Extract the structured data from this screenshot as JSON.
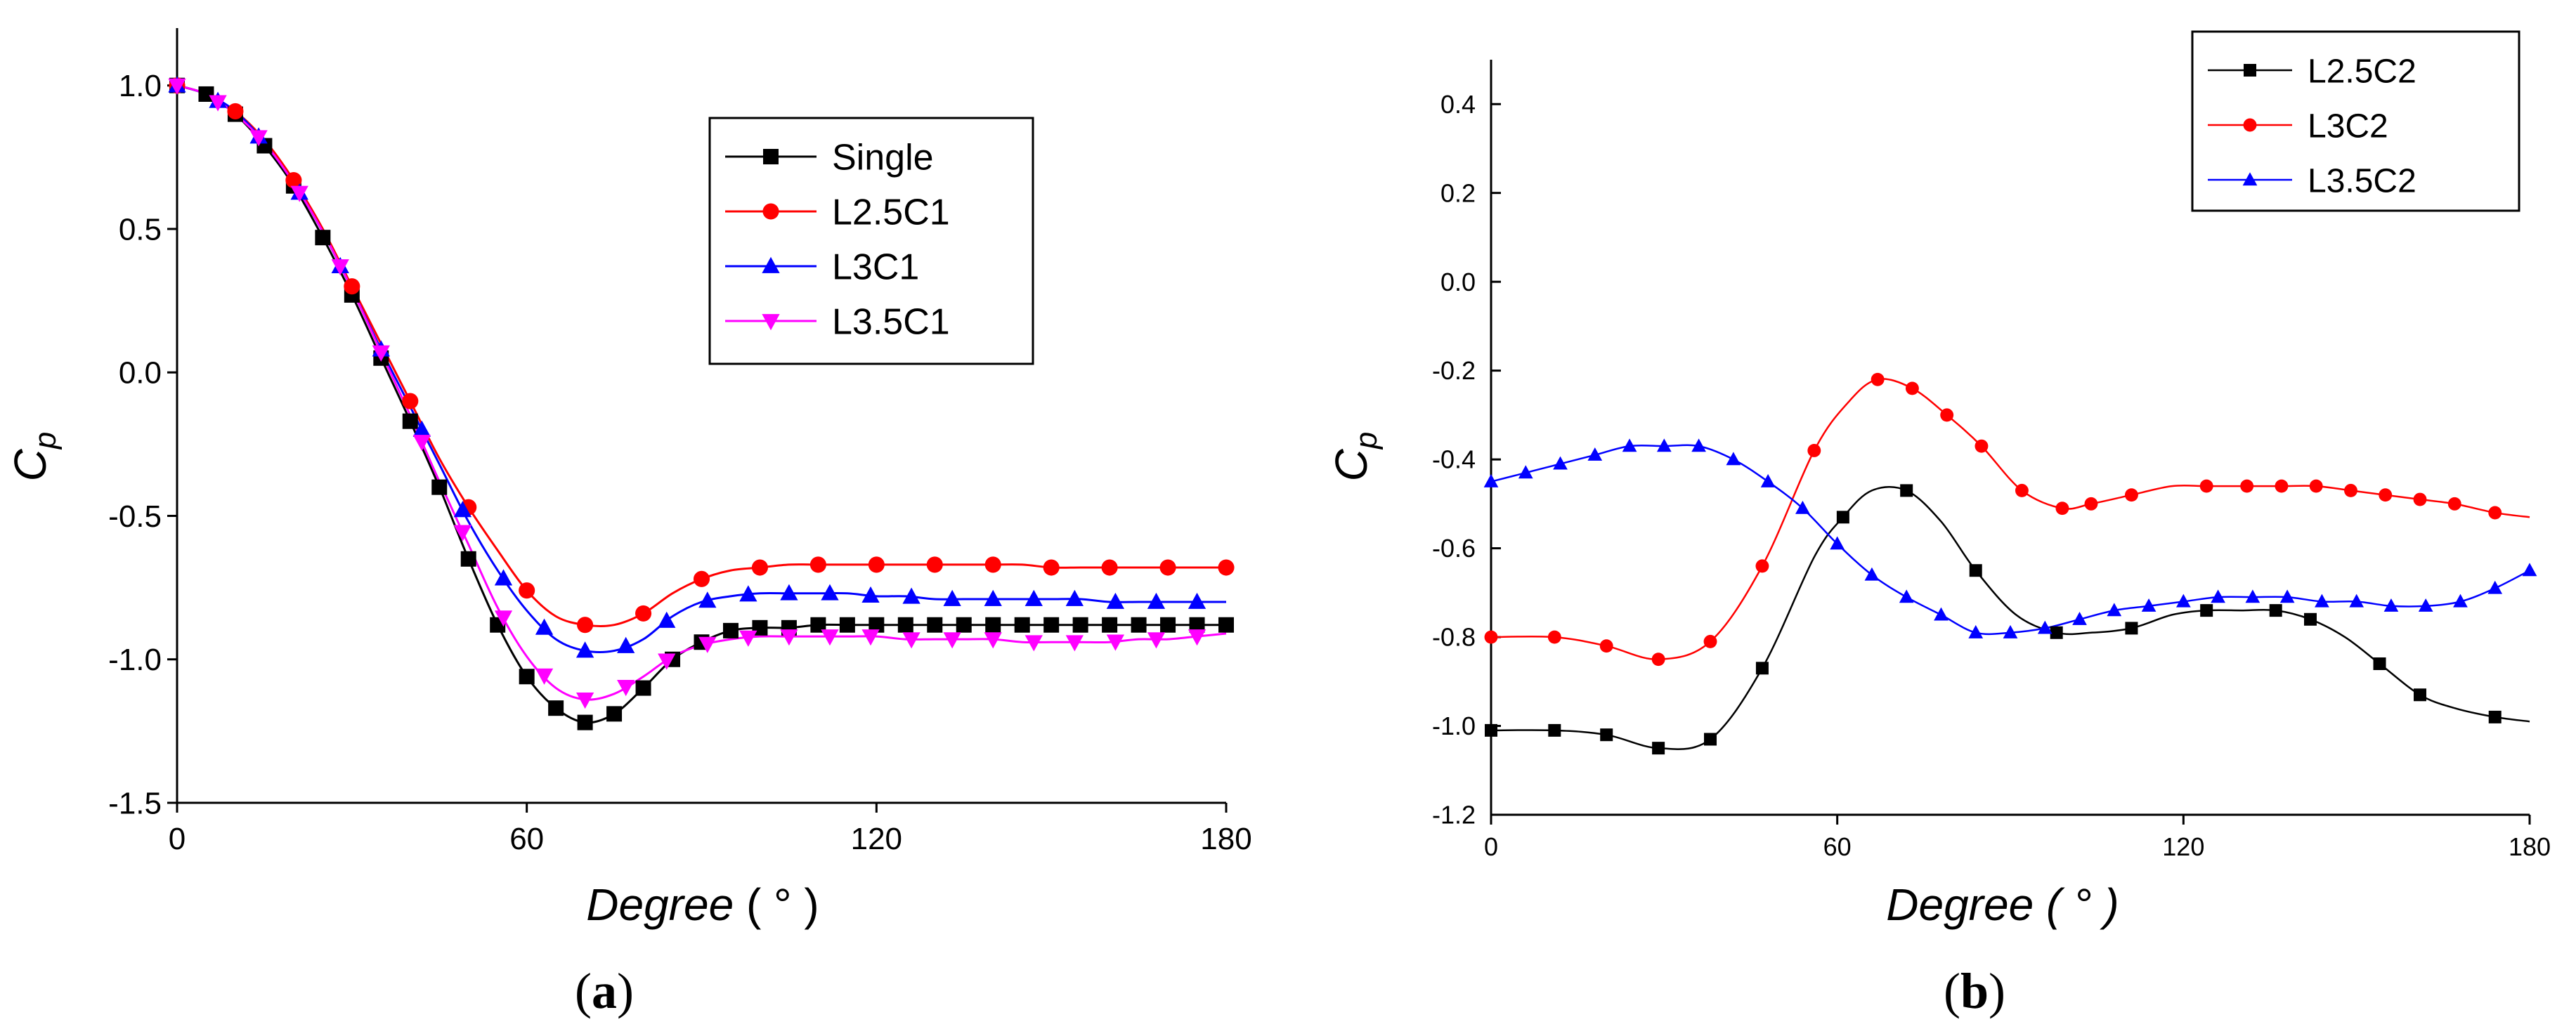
{
  "chart_data": [
    {
      "type": "line",
      "panel_label": "(a)",
      "panel_label_parts": [
        "(",
        "a",
        ")"
      ],
      "xlabel_parts": [
        "Degree",
        "( ° )"
      ],
      "ylabel": "C",
      "ylabel_subscript": "p",
      "xlim": [
        0,
        180
      ],
      "ylim": [
        -1.5,
        1.2
      ],
      "xticks": [
        0,
        60,
        120,
        180
      ],
      "yticks": [
        1.0,
        0.5,
        0.0,
        -0.5,
        -1.0,
        -1.5
      ],
      "ytick_labels": [
        "1.0",
        "0.5",
        "0.0",
        "-0.5",
        "-1.0",
        "-1.5"
      ],
      "legend_position": "top-center",
      "series": [
        {
          "name": "Single",
          "color": "#000000",
          "marker": "square",
          "x": [
            0,
            5,
            10,
            15,
            20,
            25,
            30,
            35,
            40,
            45,
            50,
            55,
            60,
            65,
            70,
            75,
            80,
            85,
            90,
            95,
            100,
            105,
            110,
            115,
            120,
            125,
            130,
            135,
            140,
            145,
            150,
            155,
            160,
            165,
            170,
            175,
            180
          ],
          "y": [
            1.0,
            0.97,
            0.9,
            0.79,
            0.65,
            0.47,
            0.27,
            0.05,
            -0.17,
            -0.4,
            -0.65,
            -0.88,
            -1.06,
            -1.17,
            -1.22,
            -1.19,
            -1.1,
            -1.0,
            -0.94,
            -0.9,
            -0.89,
            -0.89,
            -0.88,
            -0.88,
            -0.88,
            -0.88,
            -0.88,
            -0.88,
            -0.88,
            -0.88,
            -0.88,
            -0.88,
            -0.88,
            -0.88,
            -0.88,
            -0.88,
            -0.88
          ],
          "marker_x": [
            0,
            5,
            10,
            15,
            20,
            25,
            30,
            35,
            40,
            45,
            50,
            55,
            60,
            65,
            70,
            75,
            80,
            85,
            90,
            95,
            100,
            105,
            110,
            115,
            120,
            125,
            130,
            135,
            140,
            145,
            150,
            155,
            160,
            165,
            170,
            175,
            180
          ]
        },
        {
          "name": "L2.5C1",
          "color": "#ff0000",
          "marker": "circle",
          "x": [
            0,
            5,
            10,
            15,
            20,
            25,
            30,
            35,
            40,
            45,
            50,
            55,
            60,
            65,
            70,
            75,
            80,
            85,
            90,
            95,
            100,
            105,
            110,
            115,
            120,
            125,
            130,
            135,
            140,
            145,
            150,
            155,
            160,
            165,
            170,
            175,
            180
          ],
          "y": [
            1.0,
            0.97,
            0.91,
            0.81,
            0.67,
            0.5,
            0.3,
            0.1,
            -0.1,
            -0.3,
            -0.47,
            -0.62,
            -0.76,
            -0.85,
            -0.88,
            -0.88,
            -0.84,
            -0.77,
            -0.72,
            -0.69,
            -0.68,
            -0.67,
            -0.67,
            -0.67,
            -0.67,
            -0.67,
            -0.67,
            -0.67,
            -0.67,
            -0.67,
            -0.68,
            -0.68,
            -0.68,
            -0.68,
            -0.68,
            -0.68,
            -0.68
          ],
          "marker_x": [
            0,
            10,
            20,
            30,
            40,
            50,
            60,
            70,
            80,
            90,
            100,
            110,
            120,
            130,
            140,
            150,
            160,
            170,
            180
          ]
        },
        {
          "name": "L3C1",
          "color": "#0000ff",
          "marker": "triangle-up",
          "x": [
            0,
            5,
            10,
            15,
            20,
            25,
            30,
            35,
            40,
            45,
            50,
            55,
            60,
            65,
            70,
            75,
            80,
            85,
            90,
            95,
            100,
            105,
            110,
            115,
            120,
            125,
            130,
            135,
            140,
            145,
            150,
            155,
            160,
            165,
            170,
            175,
            180
          ],
          "y": [
            1.0,
            0.97,
            0.91,
            0.8,
            0.66,
            0.49,
            0.29,
            0.08,
            -0.12,
            -0.32,
            -0.52,
            -0.69,
            -0.83,
            -0.93,
            -0.97,
            -0.97,
            -0.93,
            -0.85,
            -0.8,
            -0.78,
            -0.77,
            -0.77,
            -0.77,
            -0.77,
            -0.78,
            -0.78,
            -0.79,
            -0.79,
            -0.79,
            -0.79,
            -0.79,
            -0.79,
            -0.8,
            -0.8,
            -0.8,
            -0.8,
            -0.8
          ],
          "marker_x": [
            0,
            7,
            14,
            21,
            28,
            35,
            42,
            49,
            56,
            63,
            70,
            77,
            84,
            91,
            98,
            105,
            112,
            119,
            126,
            133,
            140,
            147,
            154,
            161,
            168,
            175
          ]
        },
        {
          "name": "L3.5C1",
          "color": "#ff00ff",
          "marker": "triangle-down",
          "x": [
            0,
            5,
            10,
            15,
            20,
            25,
            30,
            35,
            40,
            45,
            50,
            55,
            60,
            65,
            70,
            75,
            80,
            85,
            90,
            95,
            100,
            105,
            110,
            115,
            120,
            125,
            130,
            135,
            140,
            145,
            150,
            155,
            160,
            165,
            170,
            175,
            180
          ],
          "y": [
            1.0,
            0.97,
            0.9,
            0.8,
            0.66,
            0.49,
            0.29,
            0.07,
            -0.15,
            -0.38,
            -0.6,
            -0.82,
            -0.99,
            -1.1,
            -1.14,
            -1.12,
            -1.06,
            -0.99,
            -0.95,
            -0.93,
            -0.92,
            -0.92,
            -0.92,
            -0.92,
            -0.92,
            -0.93,
            -0.93,
            -0.93,
            -0.93,
            -0.94,
            -0.94,
            -0.94,
            -0.94,
            -0.93,
            -0.93,
            -0.92,
            -0.91
          ],
          "marker_x": [
            0,
            7,
            14,
            21,
            28,
            35,
            42,
            49,
            56,
            63,
            70,
            77,
            84,
            91,
            98,
            105,
            112,
            119,
            126,
            133,
            140,
            147,
            154,
            161,
            168,
            175
          ]
        }
      ]
    },
    {
      "type": "line",
      "panel_label": "(b)",
      "panel_label_parts": [
        "(",
        "b",
        ")"
      ],
      "xlabel": "Degree ( ° )",
      "ylabel": "C",
      "ylabel_subscript": "p",
      "xlim": [
        0,
        180
      ],
      "ylim": [
        -1.2,
        0.5
      ],
      "xticks": [
        0,
        60,
        120,
        180
      ],
      "yticks": [
        0.4,
        0.2,
        0.0,
        -0.2,
        -0.4,
        -0.6,
        -0.8,
        -1.0,
        -1.2
      ],
      "ytick_labels": [
        "0.4",
        "0.2",
        "0.0",
        "-0.2",
        "-0.4",
        "-0.6",
        "-0.8",
        "-1.0",
        "-1.2"
      ],
      "legend_position": "top-right",
      "series": [
        {
          "name": "L2.5C2",
          "color": "#000000",
          "marker": "square",
          "x": [
            0,
            11,
            20,
            29,
            38,
            47,
            56,
            61,
            66,
            72,
            78,
            84,
            91,
            98,
            104,
            111,
            118,
            124,
            130,
            136,
            142,
            148,
            154,
            161,
            167,
            174,
            180
          ],
          "y": [
            -1.01,
            -1.01,
            -1.02,
            -1.05,
            -1.03,
            -0.87,
            -0.62,
            -0.53,
            -0.47,
            -0.47,
            -0.54,
            -0.65,
            -0.75,
            -0.79,
            -0.79,
            -0.78,
            -0.75,
            -0.74,
            -0.74,
            -0.74,
            -0.76,
            -0.8,
            -0.86,
            -0.93,
            -0.96,
            -0.98,
            -0.99
          ],
          "marker_x": [
            0,
            11,
            20,
            29,
            38,
            47,
            61,
            72,
            84,
            98,
            111,
            124,
            136,
            142,
            154,
            161,
            174
          ]
        },
        {
          "name": "L3C2",
          "color": "#ff0000",
          "marker": "circle",
          "x": [
            0,
            11,
            20,
            29,
            38,
            47,
            56,
            62,
            67,
            73,
            79,
            85,
            92,
            99,
            104,
            111,
            118,
            124,
            131,
            137,
            143,
            149,
            155,
            161,
            167,
            174,
            180
          ],
          "y": [
            -0.8,
            -0.8,
            -0.82,
            -0.85,
            -0.81,
            -0.64,
            -0.38,
            -0.27,
            -0.22,
            -0.24,
            -0.3,
            -0.37,
            -0.47,
            -0.51,
            -0.5,
            -0.48,
            -0.46,
            -0.46,
            -0.46,
            -0.46,
            -0.46,
            -0.47,
            -0.48,
            -0.49,
            -0.5,
            -0.52,
            -0.53
          ],
          "marker_x": [
            0,
            11,
            20,
            29,
            38,
            47,
            56,
            67,
            73,
            79,
            85,
            92,
            99,
            104,
            111,
            124,
            131,
            137,
            143,
            149,
            155,
            161,
            167,
            174
          ]
        },
        {
          "name": "L3.5C2",
          "color": "#0000ff",
          "marker": "triangle-up",
          "x": [
            0,
            6,
            12,
            18,
            24,
            30,
            36,
            42,
            48,
            54,
            60,
            66,
            72,
            78,
            84,
            90,
            96,
            102,
            108,
            114,
            120,
            126,
            132,
            138,
            144,
            150,
            156,
            162,
            168,
            174,
            180
          ],
          "y": [
            -0.45,
            -0.43,
            -0.41,
            -0.39,
            -0.37,
            -0.37,
            -0.37,
            -0.4,
            -0.45,
            -0.51,
            -0.59,
            -0.66,
            -0.71,
            -0.75,
            -0.79,
            -0.79,
            -0.78,
            -0.76,
            -0.74,
            -0.73,
            -0.72,
            -0.71,
            -0.71,
            -0.71,
            -0.72,
            -0.72,
            -0.73,
            -0.73,
            -0.72,
            -0.69,
            -0.65
          ],
          "marker_x": [
            0,
            6,
            12,
            18,
            24,
            30,
            36,
            42,
            48,
            54,
            60,
            66,
            72,
            78,
            84,
            90,
            96,
            102,
            108,
            114,
            120,
            126,
            132,
            138,
            144,
            150,
            156,
            162,
            168,
            174,
            180
          ]
        }
      ]
    }
  ]
}
